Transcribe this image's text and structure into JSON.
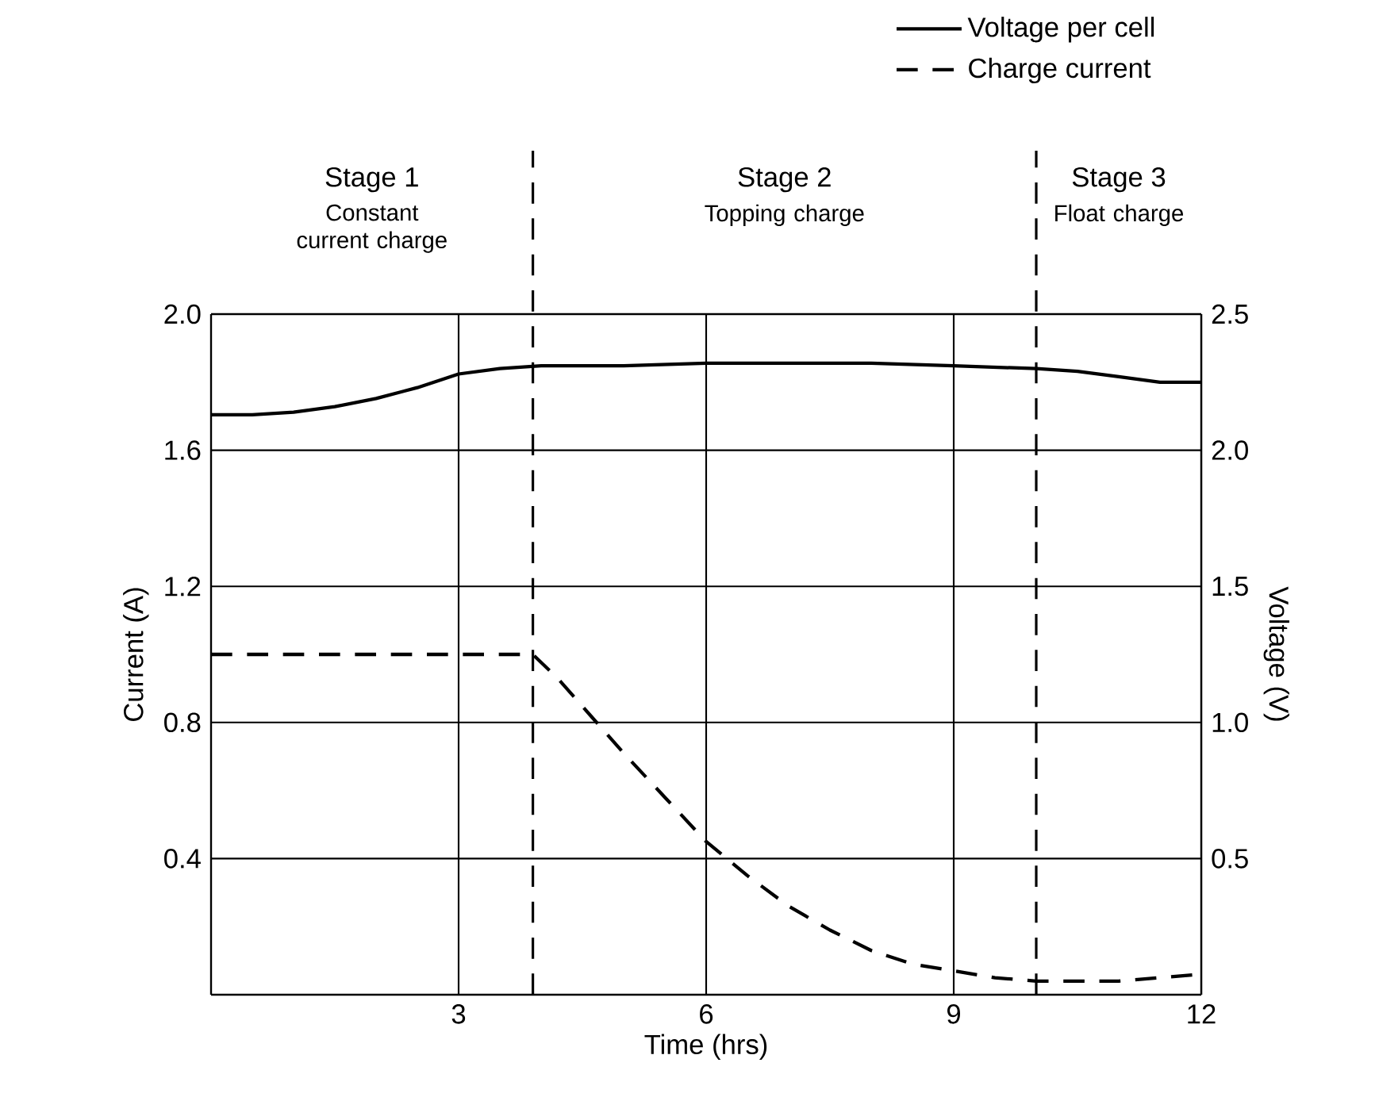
{
  "chart_data": {
    "type": "line",
    "xlabel": "Time (hrs)",
    "ylabel": "Current (A)",
    "y2label": "Voltage (V)",
    "xlim": [
      0,
      12
    ],
    "xticks": [
      3,
      6,
      9,
      12
    ],
    "ylim": [
      0,
      2.0
    ],
    "yticks": [
      {
        "value": 0.4,
        "label": "0.4"
      },
      {
        "value": 0.8,
        "label": "0.8"
      },
      {
        "value": 1.2,
        "label": "1.2"
      },
      {
        "value": 1.6,
        "label": "1.6"
      },
      {
        "value": 2.0,
        "label": "2.0"
      }
    ],
    "y2lim": [
      0,
      2.5
    ],
    "y2ticks": [
      {
        "value": 0.5,
        "label": "0.5"
      },
      {
        "value": 1.0,
        "label": "1.0"
      },
      {
        "value": 1.5,
        "label": "1.5"
      },
      {
        "value": 2.0,
        "label": "2.0"
      },
      {
        "value": 2.5,
        "label": "2.5"
      }
    ],
    "grid": true,
    "legend": "top right",
    "series": [
      {
        "name": "Voltage per cell",
        "color": "#000000",
        "axis": "y2",
        "line_style": "solid",
        "x": [
          0,
          0.5,
          1,
          1.5,
          2,
          2.5,
          3,
          3.5,
          4,
          5,
          6,
          7,
          8,
          9,
          10,
          10.5,
          11,
          11.5,
          12
        ],
        "values": [
          2.13,
          2.13,
          2.14,
          2.16,
          2.19,
          2.23,
          2.28,
          2.3,
          2.31,
          2.31,
          2.32,
          2.32,
          2.32,
          2.31,
          2.3,
          2.29,
          2.27,
          2.25,
          2.25
        ]
      },
      {
        "name": "Charge current",
        "color": "#000000",
        "line_style": "dashed",
        "x": [
          0,
          3.9,
          4.2,
          4.6,
          5,
          5.5,
          6,
          6.5,
          7,
          7.5,
          8,
          8.5,
          9,
          9.5,
          10,
          10.5,
          11,
          11.5,
          12
        ],
        "values": [
          1.0,
          1.0,
          0.93,
          0.82,
          0.71,
          0.58,
          0.45,
          0.35,
          0.26,
          0.19,
          0.13,
          0.09,
          0.07,
          0.05,
          0.04,
          0.04,
          0.04,
          0.05,
          0.06
        ]
      }
    ],
    "ref_lines": [
      {
        "axis": "x",
        "value": 3.9,
        "line_style": "dashed"
      },
      {
        "axis": "x",
        "value": 10,
        "line_style": "dashed"
      }
    ],
    "annotations": [
      "Stage 1",
      "Constant current charge",
      "Stage 2",
      "Topping charge",
      "Stage 3",
      "Float charge"
    ]
  }
}
